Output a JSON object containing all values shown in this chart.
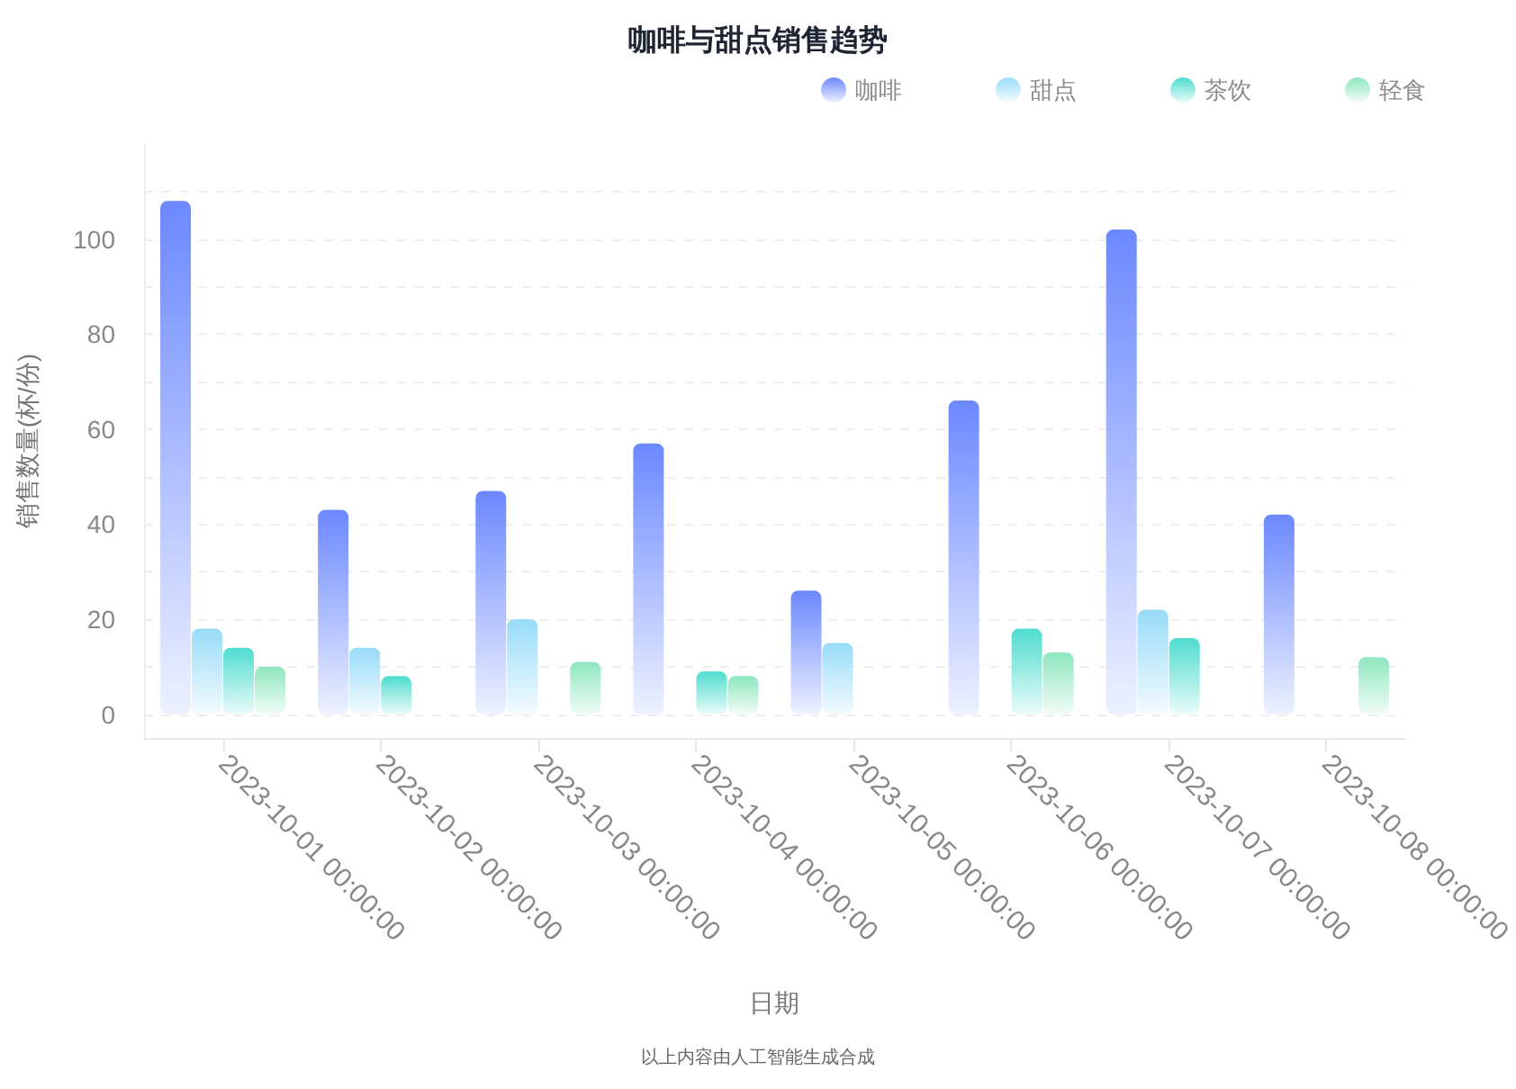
{
  "chart_data": {
    "type": "bar",
    "title": "咖啡与甜点销售趋势",
    "xlabel": "日期",
    "ylabel": "销售数量(杯/份)",
    "annotations": [
      "以上内容由人工智能生成合成"
    ],
    "categories": [
      "2023-10-01 00:00:00",
      "2023-10-02 00:00:00",
      "2023-10-03 00:00:00",
      "2023-10-04 00:00:00",
      "2023-10-05 00:00:00",
      "2023-10-06 00:00:00",
      "2023-10-07 00:00:00",
      "2023-10-08 00:00:00"
    ],
    "series": [
      {
        "name": "咖啡",
        "color": "#6b88ff",
        "values": [
          108,
          43,
          47,
          57,
          26,
          66,
          102,
          42
        ]
      },
      {
        "name": "甜点",
        "color": "#98dcf8",
        "values": [
          18,
          14,
          20,
          null,
          15,
          null,
          22,
          null
        ]
      },
      {
        "name": "茶饮",
        "color": "#4fdccf",
        "values": [
          14,
          8,
          null,
          9,
          null,
          18,
          16,
          null
        ]
      },
      {
        "name": "轻食",
        "color": "#8ee6bf",
        "values": [
          10,
          null,
          11,
          8,
          null,
          13,
          null,
          12
        ]
      }
    ],
    "ylim": [
      -5,
      120
    ],
    "yticks": [
      0,
      {
        "value": 10,
        "label": null
      },
      20,
      {
        "value": 30,
        "label": null
      },
      40,
      {
        "value": 50,
        "label": null
      },
      60,
      {
        "value": 70,
        "label": null
      },
      80,
      {
        "value": 90,
        "label": null
      },
      100,
      {
        "value": 110,
        "label": null
      }
    ],
    "grid": "y",
    "legend": "top right"
  }
}
